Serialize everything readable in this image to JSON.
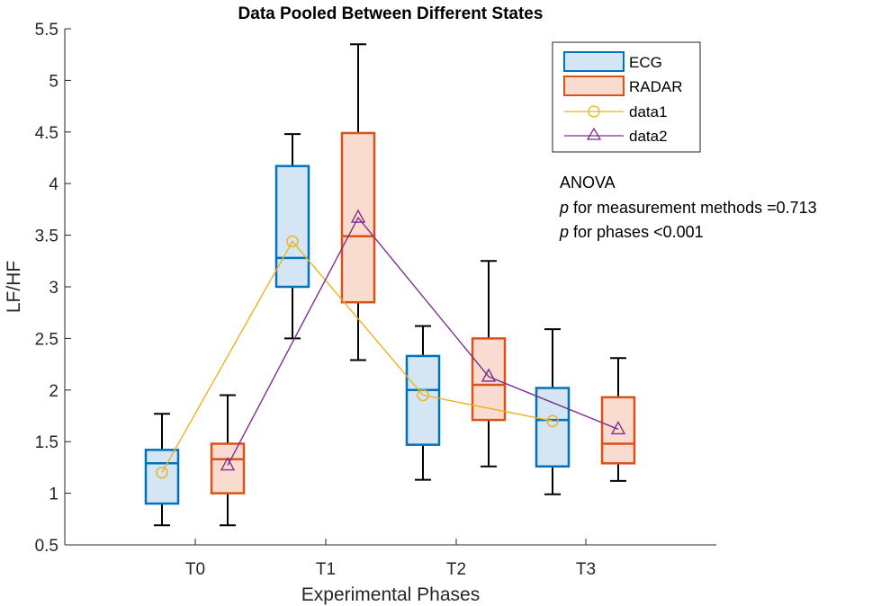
{
  "chart_data": {
    "type": "box",
    "title": "Data Pooled Between Different States",
    "xlabel": "Experimental Phases",
    "ylabel": "LF/HF",
    "ylim": [
      0.5,
      5.5
    ],
    "yticks": [
      0.5,
      1,
      1.5,
      2,
      2.5,
      3,
      3.5,
      4,
      4.5,
      5,
      5.5
    ],
    "ytick_labels": [
      "0.5",
      "1",
      "1.5",
      "2",
      "2.5",
      "3",
      "3.5",
      "4",
      "4.5",
      "5",
      "5.5"
    ],
    "categories": [
      "T0",
      "T1",
      "T2",
      "T3"
    ],
    "series": [
      {
        "name": "ECG",
        "color": "#0072BD",
        "fill": "#D4E6F3",
        "boxes": [
          {
            "min": 0.69,
            "q1": 0.9,
            "median": 1.29,
            "q3": 1.42,
            "max": 1.77
          },
          {
            "min": 2.5,
            "q1": 3.0,
            "median": 3.28,
            "q3": 4.17,
            "max": 4.48
          },
          {
            "min": 1.13,
            "q1": 1.47,
            "median": 2.0,
            "q3": 2.33,
            "max": 2.62
          },
          {
            "min": 0.99,
            "q1": 1.26,
            "median": 1.71,
            "q3": 2.02,
            "max": 2.59
          }
        ]
      },
      {
        "name": "RADAR",
        "color": "#D95319",
        "fill": "#F9DCCF",
        "boxes": [
          {
            "min": 0.69,
            "q1": 1.0,
            "median": 1.33,
            "q3": 1.48,
            "max": 1.95
          },
          {
            "min": 2.29,
            "q1": 2.85,
            "median": 3.49,
            "q3": 4.49,
            "max": 5.35
          },
          {
            "min": 1.26,
            "q1": 1.71,
            "median": 2.05,
            "q3": 2.5,
            "max": 3.25
          },
          {
            "min": 1.12,
            "q1": 1.29,
            "median": 1.48,
            "q3": 1.93,
            "max": 2.31
          }
        ]
      }
    ],
    "lines": [
      {
        "name": "data1",
        "color": "#EDB120",
        "marker": "circle",
        "values": [
          1.2,
          3.44,
          1.95,
          1.7
        ]
      },
      {
        "name": "data2",
        "color": "#7E2F8E",
        "marker": "triangle",
        "values": [
          1.27,
          3.67,
          2.13,
          1.62
        ]
      }
    ],
    "legend_position": "top-right",
    "annotations": {
      "line1": "ANOVA",
      "line2_italic": "p",
      "line2_rest": " for measurement methods =0.713",
      "line3_italic": "p",
      "line3_rest": " for phases <0.001"
    }
  }
}
